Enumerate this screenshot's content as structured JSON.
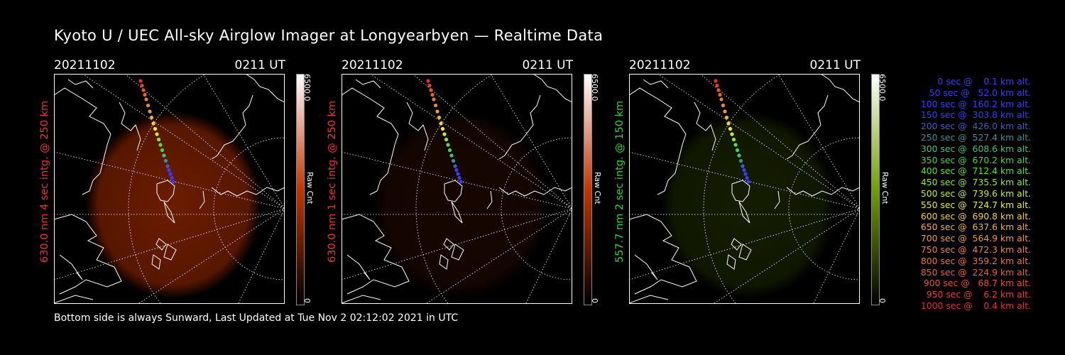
{
  "title": "Kyoto U / UEC All-sky Airglow Imager at Longyearbyen — Realtime Data",
  "footer": "Bottom side is always Sunward, Last Updated at Tue Nov  2 02:12:02 2021 in UTC",
  "panels": [
    {
      "date": "20211102",
      "time": "0211 UT",
      "ylabel": "630.0 nm 4 sec intg. @ 250 km",
      "label_color": "#e8382c",
      "cbar_max": "6500.0",
      "cbar_min": "0",
      "cbar_unit": "Raw Cnt",
      "cbar_color": "#c43400",
      "intensity": 0.55
    },
    {
      "date": "20211102",
      "time": "0211 UT",
      "ylabel": "630.0 nm 1 sec intg. @ 250 km",
      "label_color": "#e8382c",
      "cbar_max": "6500.0",
      "cbar_min": "0",
      "cbar_unit": "Raw Cnt",
      "cbar_color": "#c43400",
      "intensity": 0.12
    },
    {
      "date": "20211102",
      "time": "0211 UT",
      "ylabel": "557.7 nm 2 sec intg. @ 150 km",
      "label_color": "#2fd52f",
      "cbar_max": "6500.0",
      "cbar_min": "0",
      "cbar_unit": "Raw Cnt",
      "cbar_color": "#6fa000",
      "intensity": 0.18
    }
  ],
  "legend": [
    {
      "text": "   0 sec @    0.1 km alt.",
      "color": "#3c3cff"
    },
    {
      "text": "  50 sec @   52.0 km alt.",
      "color": "#3c3cff"
    },
    {
      "text": " 100 sec @  160.2 km alt.",
      "color": "#3c3cff"
    },
    {
      "text": " 150 sec @  303.8 km alt.",
      "color": "#3c3cff"
    },
    {
      "text": " 200 sec @  426.0 km alt.",
      "color": "#3f5ec8"
    },
    {
      "text": " 250 sec @  527.4 km alt.",
      "color": "#2e9696"
    },
    {
      "text": " 300 sec @  608.6 km alt.",
      "color": "#37c58a"
    },
    {
      "text": " 350 sec @  670.2 km alt.",
      "color": "#42d64a"
    },
    {
      "text": " 400 sec @  712.4 km alt.",
      "color": "#5ee032"
    },
    {
      "text": " 450 sec @  735.5 km alt.",
      "color": "#8de832"
    },
    {
      "text": " 500 sec @  739.6 km alt.",
      "color": "#c8ec32"
    },
    {
      "text": " 550 sec @  724.7 km alt.",
      "color": "#ecec32"
    },
    {
      "text": " 600 sec @  690.8 km alt.",
      "color": "#f4d232"
    },
    {
      "text": " 650 sec @  637.6 km alt.",
      "color": "#f2b432"
    },
    {
      "text": " 700 sec @  564.9 km alt.",
      "color": "#f09c32"
    },
    {
      "text": " 750 sec @  472.3 km alt.",
      "color": "#ee8732"
    },
    {
      "text": " 800 sec @  359.2 km alt.",
      "color": "#ec7832"
    },
    {
      "text": " 850 sec @  224.9 km alt.",
      "color": "#ea6432"
    },
    {
      "text": " 900 sec @   68.7 km alt.",
      "color": "#e85030"
    },
    {
      "text": " 950 sec @    6.2 km alt.",
      "color": "#e64030"
    },
    {
      "text": "1000 sec @    0.4 km alt.",
      "color": "#e43030"
    }
  ]
}
